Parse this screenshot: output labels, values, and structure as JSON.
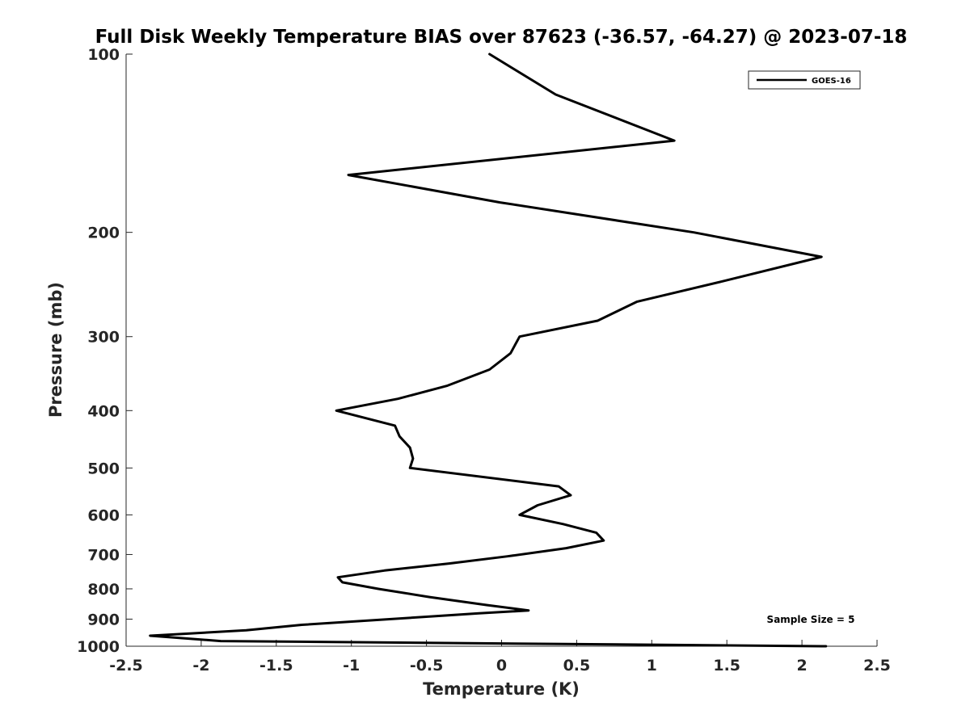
{
  "chart_data": {
    "type": "line",
    "title": "Full Disk Weekly Temperature BIAS over 87623 (-36.57, -64.27) @ 2023-07-18",
    "xlabel": "Temperature (K)",
    "ylabel": "Pressure (mb)",
    "xlim": [
      -2.5,
      2.5
    ],
    "ylim": [
      100,
      1000
    ],
    "y_scale": "log",
    "y_reversed": true,
    "grid": false,
    "legend_position": "top-right",
    "xticks": [
      -2.5,
      -2,
      -1.5,
      -1,
      -0.5,
      0,
      0.5,
      1,
      1.5,
      2,
      2.5
    ],
    "xtick_labels": [
      "-2.5",
      "-2",
      "-1.5",
      "-1",
      "-0.5",
      "0",
      "0.5",
      "1",
      "1.5",
      "2",
      "2.5"
    ],
    "yticks": [
      100,
      200,
      300,
      400,
      500,
      600,
      700,
      800,
      900,
      1000
    ],
    "ytick_labels": [
      "100",
      "200",
      "300",
      "400",
      "500",
      "600",
      "700",
      "800",
      "900",
      "1000"
    ],
    "series": [
      {
        "name": "GOES-16",
        "color": "#000000",
        "x": [
          -0.08,
          0.36,
          1.15,
          -1.02,
          -0.01,
          1.28,
          2.13,
          1.47,
          0.9,
          0.64,
          0.12,
          0.06,
          -0.08,
          -0.36,
          -0.69,
          -1.1,
          -0.71,
          -0.68,
          -0.61,
          -0.59,
          -0.61,
          0.38,
          0.46,
          0.24,
          0.12,
          0.41,
          0.63,
          0.68,
          0.43,
          0.04,
          -0.35,
          -0.78,
          -1.09,
          -1.06,
          -0.82,
          -0.48,
          -0.1,
          0.18,
          -0.15,
          -1.33,
          -1.7,
          -2.34,
          -1.87,
          2.16
        ],
        "y": [
          100,
          117,
          140,
          160,
          178,
          200,
          220,
          242,
          262,
          282,
          300,
          320,
          341,
          363,
          382,
          400,
          424,
          442,
          462,
          482,
          500,
          537,
          556,
          578,
          600,
          622,
          643,
          663,
          683,
          705,
          725,
          745,
          765,
          780,
          800,
          826,
          852,
          870,
          880,
          920,
          940,
          960,
          980,
          1000
        ]
      }
    ]
  },
  "legend": {
    "entries": [
      "GOES-16"
    ]
  },
  "annotation": "Sample Size = 5"
}
